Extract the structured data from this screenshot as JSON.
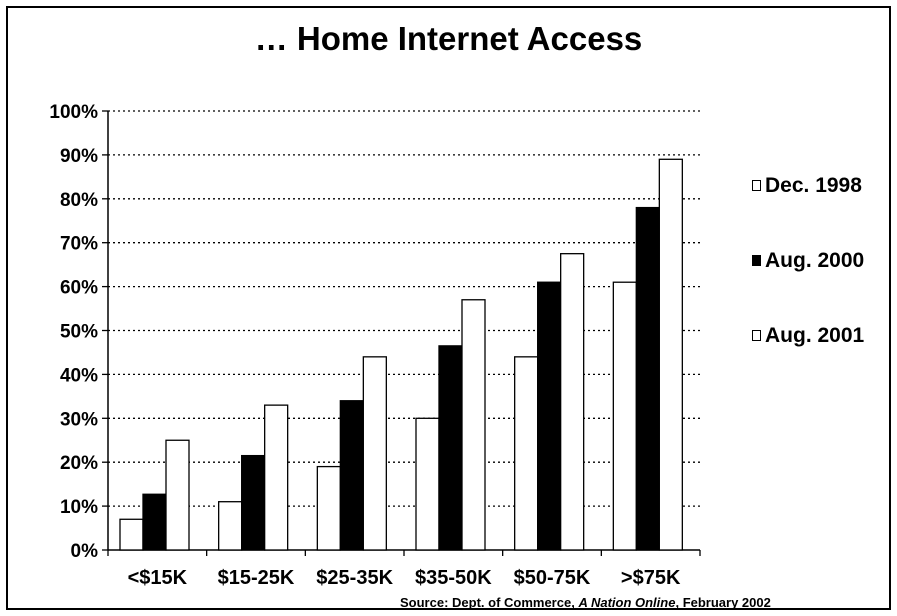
{
  "chart_data": {
    "type": "bar",
    "title": "… Home Internet Access",
    "categories": [
      "<$15K",
      "$15-25K",
      "$25-35K",
      "$35-50K",
      "$50-75K",
      ">$75K"
    ],
    "series": [
      {
        "name": "Dec. 1998",
        "values": [
          7,
          11,
          19,
          30,
          44,
          61
        ],
        "color": "#ffffff"
      },
      {
        "name": "Aug. 2000",
        "values": [
          12.7,
          21.5,
          34,
          46.5,
          61,
          78
        ],
        "color": "#000000"
      },
      {
        "name": "Aug. 2001",
        "values": [
          25,
          33,
          44,
          57,
          67.5,
          89
        ],
        "color": "#ffffff"
      }
    ],
    "ylim": [
      0,
      100
    ],
    "yticks": [
      "0%",
      "10%",
      "20%",
      "30%",
      "40%",
      "50%",
      "60%",
      "70%",
      "80%",
      "90%",
      "100%"
    ],
    "grid": "dotted horizontal",
    "legend_position": "right",
    "xlabel": "",
    "ylabel": ""
  },
  "source": {
    "prefix": "Source: Dept. of Commerce, ",
    "italic": "A Nation Online",
    "suffix": ", February 2002"
  }
}
